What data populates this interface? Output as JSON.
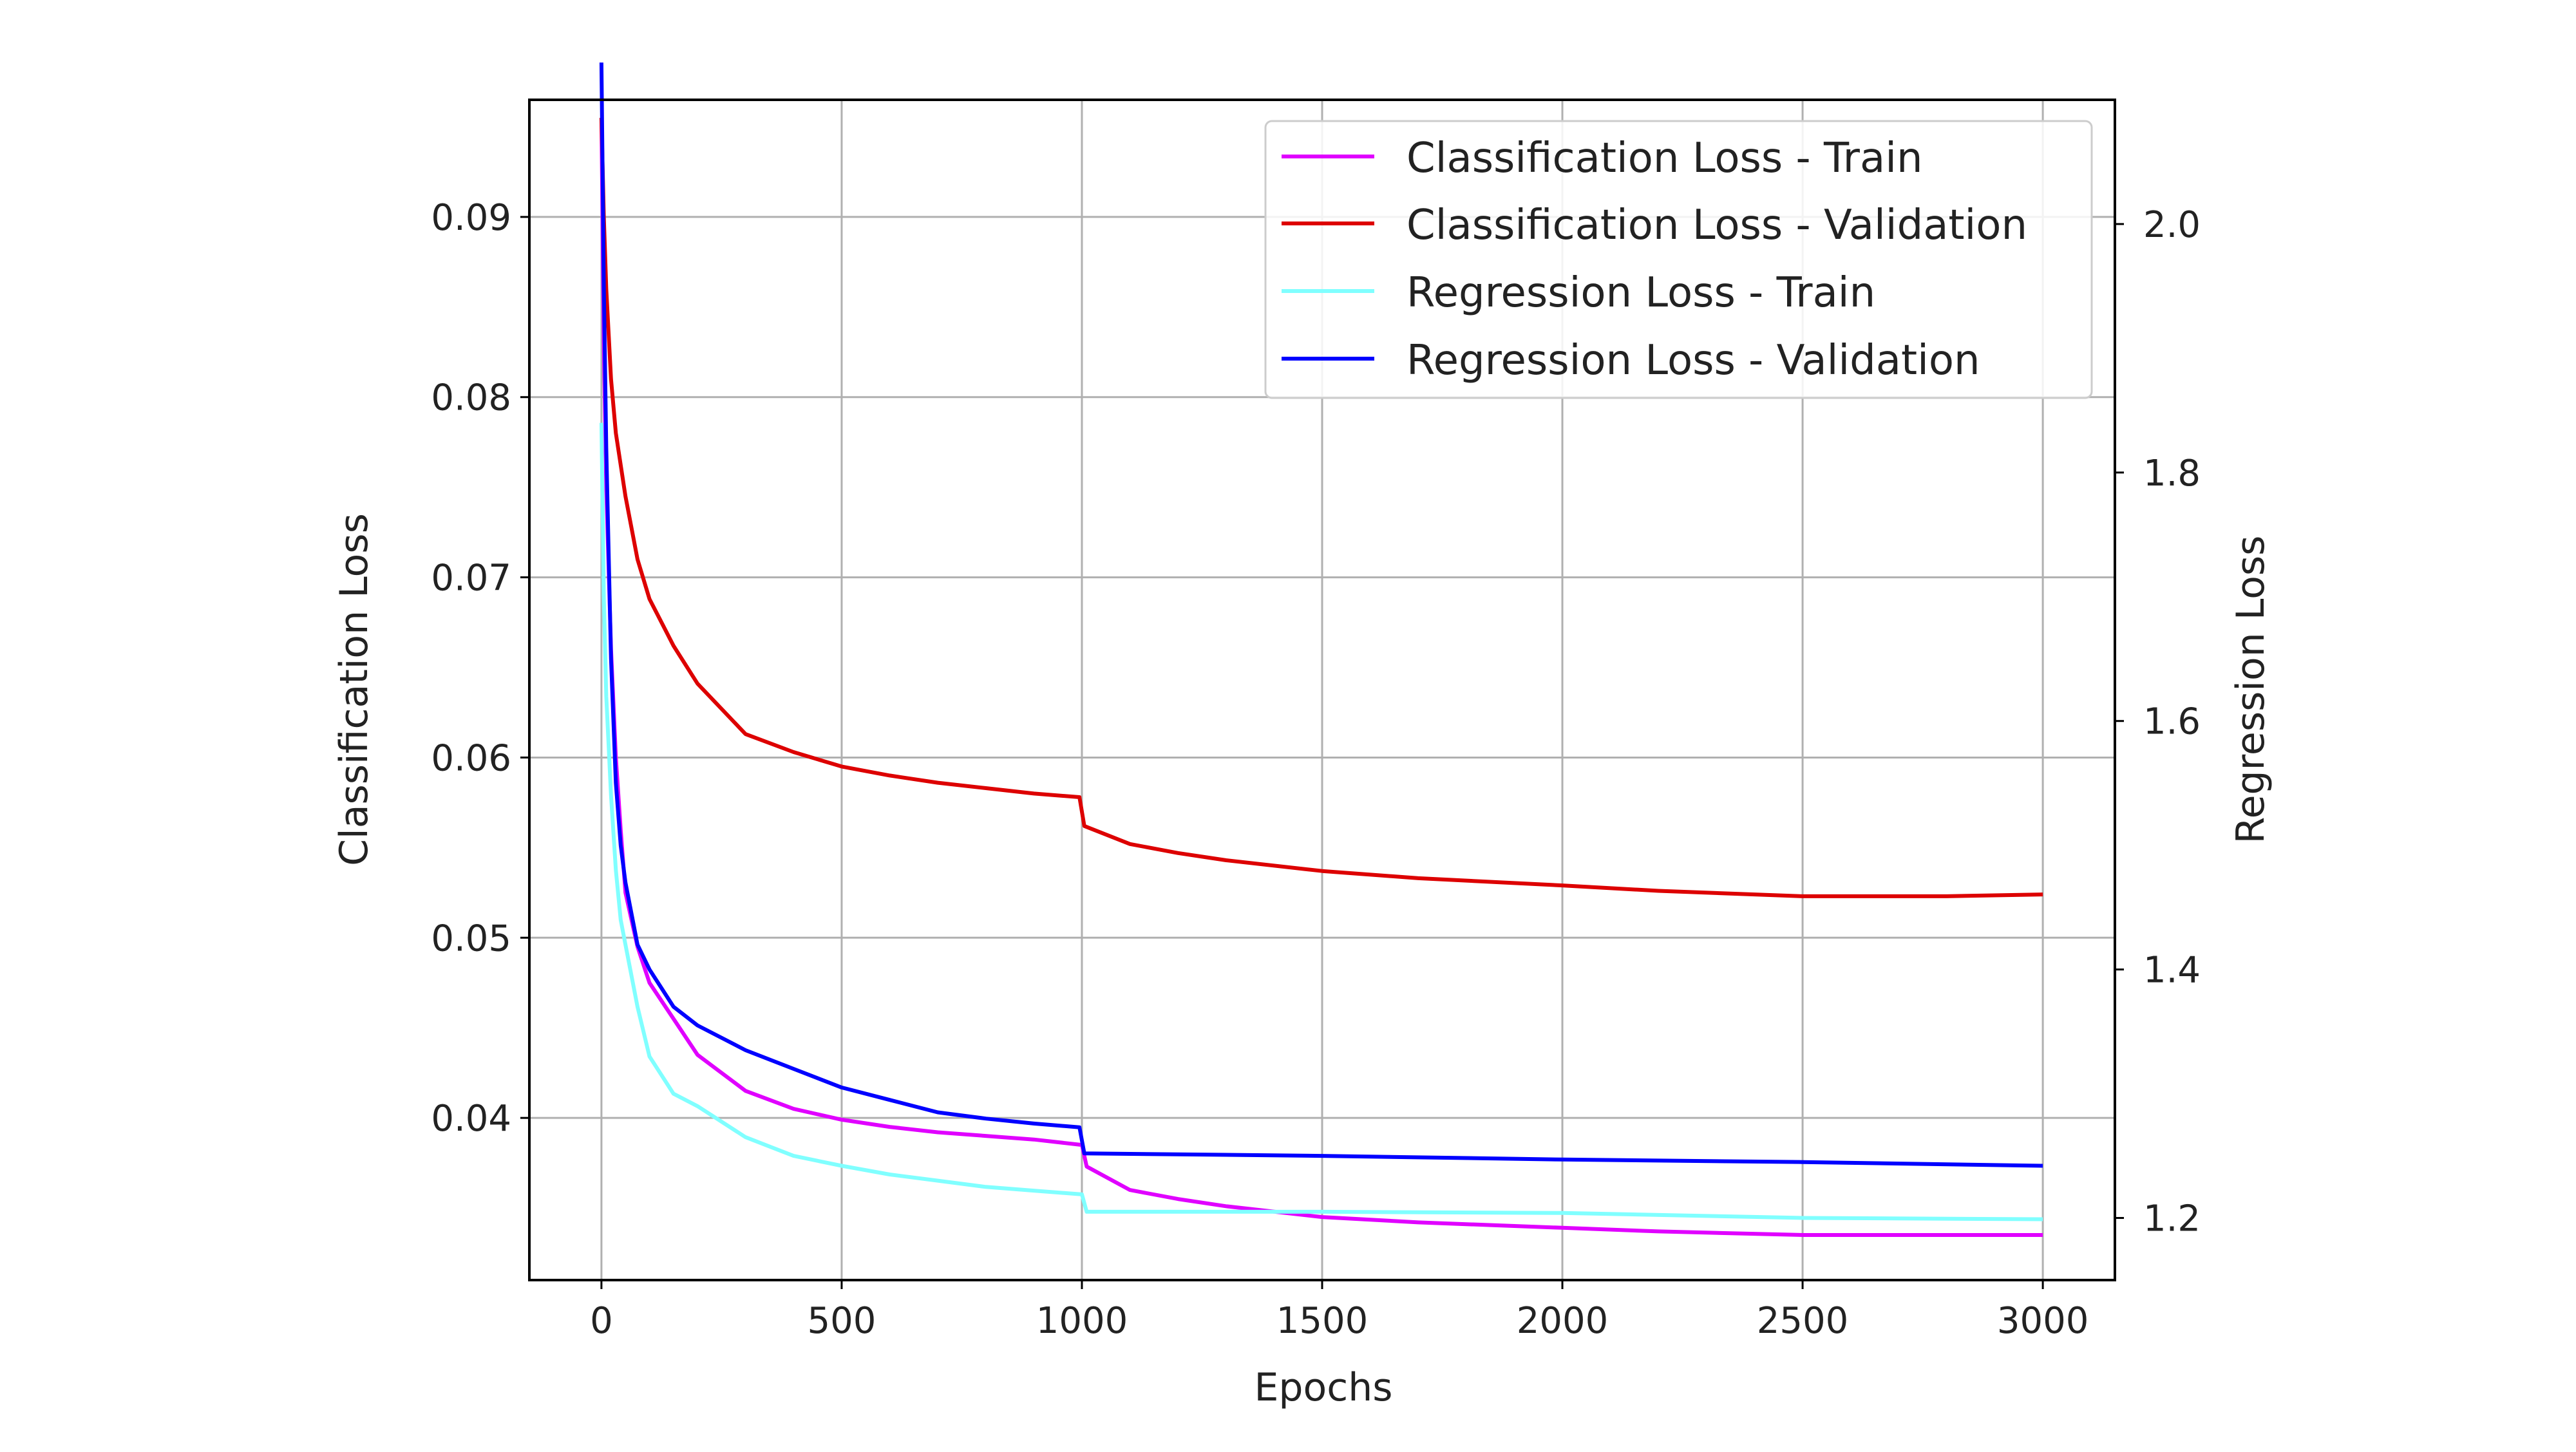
{
  "chart_data": {
    "type": "line",
    "title": "",
    "xlabel": "Epochs",
    "ylabel_left": "Classification Loss",
    "ylabel_right": "Regression Loss",
    "xlim": [
      -150,
      3150
    ],
    "ylim_left": [
      0.031,
      0.0965
    ],
    "ylim_right": [
      1.15,
      2.1
    ],
    "grid": true,
    "legend_position": "top-right",
    "xticks": [
      0,
      500,
      1000,
      1500,
      2000,
      2500,
      3000
    ],
    "yticks_left": [
      0.04,
      0.05,
      0.06,
      0.07,
      0.08,
      0.09
    ],
    "yticks_right": [
      1.2,
      1.4,
      1.6,
      1.8,
      2.0
    ],
    "series": [
      {
        "name": "Classification Loss - Train",
        "axis": "left",
        "color": "#e000ff",
        "points": [
          [
            0,
            0.0955
          ],
          [
            5,
            0.083
          ],
          [
            10,
            0.075
          ],
          [
            20,
            0.066
          ],
          [
            30,
            0.06
          ],
          [
            40,
            0.056
          ],
          [
            50,
            0.0525
          ],
          [
            75,
            0.0495
          ],
          [
            100,
            0.0475
          ],
          [
            150,
            0.0455
          ],
          [
            200,
            0.0435
          ],
          [
            300,
            0.0415
          ],
          [
            400,
            0.0405
          ],
          [
            500,
            0.0399
          ],
          [
            600,
            0.0395
          ],
          [
            700,
            0.0392
          ],
          [
            800,
            0.039
          ],
          [
            900,
            0.0388
          ],
          [
            1000,
            0.0385
          ],
          [
            1010,
            0.0373
          ],
          [
            1100,
            0.036
          ],
          [
            1200,
            0.0355
          ],
          [
            1300,
            0.0351
          ],
          [
            1500,
            0.0345
          ],
          [
            1700,
            0.0342
          ],
          [
            2000,
            0.0339
          ],
          [
            2200,
            0.0337
          ],
          [
            2500,
            0.0335
          ],
          [
            2700,
            0.0335
          ],
          [
            3000,
            0.0335
          ]
        ]
      },
      {
        "name": "Classification Loss - Validation",
        "axis": "left",
        "color": "#dd0000",
        "points": [
          [
            0,
            0.0955
          ],
          [
            5,
            0.09
          ],
          [
            10,
            0.086
          ],
          [
            20,
            0.081
          ],
          [
            30,
            0.078
          ],
          [
            50,
            0.0745
          ],
          [
            75,
            0.071
          ],
          [
            100,
            0.0688
          ],
          [
            150,
            0.0662
          ],
          [
            200,
            0.0641
          ],
          [
            300,
            0.0613
          ],
          [
            400,
            0.0603
          ],
          [
            500,
            0.0595
          ],
          [
            600,
            0.059
          ],
          [
            700,
            0.0586
          ],
          [
            800,
            0.0583
          ],
          [
            900,
            0.058
          ],
          [
            995,
            0.0578
          ],
          [
            1005,
            0.0562
          ],
          [
            1100,
            0.0552
          ],
          [
            1200,
            0.0547
          ],
          [
            1300,
            0.0543
          ],
          [
            1500,
            0.0537
          ],
          [
            1700,
            0.0533
          ],
          [
            2000,
            0.0529
          ],
          [
            2200,
            0.0526
          ],
          [
            2500,
            0.0523
          ],
          [
            2800,
            0.0523
          ],
          [
            3000,
            0.0524
          ]
        ]
      },
      {
        "name": "Regression Loss - Train",
        "axis": "right",
        "color": "#80ffff",
        "points": [
          [
            0,
            1.84
          ],
          [
            5,
            1.7
          ],
          [
            10,
            1.62
          ],
          [
            20,
            1.54
          ],
          [
            30,
            1.48
          ],
          [
            40,
            1.44
          ],
          [
            50,
            1.42
          ],
          [
            75,
            1.37
          ],
          [
            100,
            1.33
          ],
          [
            150,
            1.3
          ],
          [
            200,
            1.29
          ],
          [
            300,
            1.265
          ],
          [
            400,
            1.25
          ],
          [
            500,
            1.242
          ],
          [
            600,
            1.235
          ],
          [
            700,
            1.23
          ],
          [
            800,
            1.225
          ],
          [
            900,
            1.222
          ],
          [
            1000,
            1.219
          ],
          [
            1010,
            1.205
          ],
          [
            1500,
            1.205
          ],
          [
            2000,
            1.204
          ],
          [
            2500,
            1.2
          ],
          [
            3000,
            1.199
          ]
        ]
      },
      {
        "name": "Regression Loss - Validation",
        "axis": "right",
        "color": "#0000ff",
        "points": [
          [
            0,
            2.13
          ],
          [
            5,
            1.95
          ],
          [
            10,
            1.82
          ],
          [
            20,
            1.65
          ],
          [
            30,
            1.55
          ],
          [
            40,
            1.5
          ],
          [
            50,
            1.47
          ],
          [
            75,
            1.42
          ],
          [
            100,
            1.4
          ],
          [
            150,
            1.37
          ],
          [
            200,
            1.355
          ],
          [
            300,
            1.335
          ],
          [
            400,
            1.32
          ],
          [
            500,
            1.305
          ],
          [
            600,
            1.295
          ],
          [
            700,
            1.285
          ],
          [
            800,
            1.28
          ],
          [
            900,
            1.276
          ],
          [
            995,
            1.273
          ],
          [
            1005,
            1.252
          ],
          [
            1500,
            1.25
          ],
          [
            2000,
            1.247
          ],
          [
            2500,
            1.245
          ],
          [
            3000,
            1.242
          ]
        ]
      }
    ]
  }
}
